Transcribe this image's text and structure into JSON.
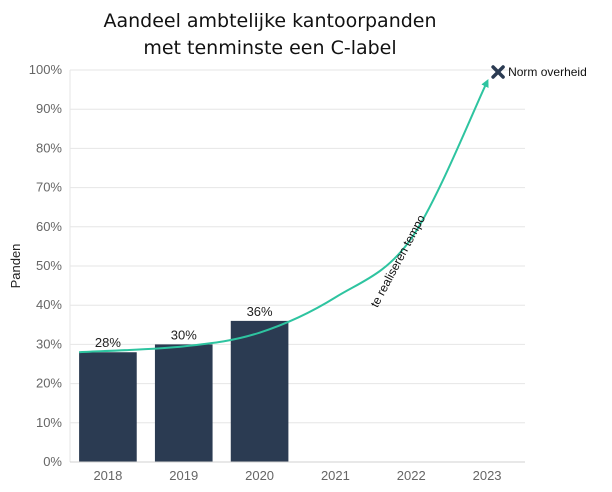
{
  "chart_data": {
    "type": "bar",
    "title_line1": "Aandeel ambtelijke kantoorpanden",
    "title_line2": "met tenminste een C-label",
    "ylabel": "Panden",
    "xlabel": "",
    "categories": [
      "2018",
      "2019",
      "2020",
      "2021",
      "2022",
      "2023"
    ],
    "values": [
      28,
      30,
      36,
      null,
      null,
      null
    ],
    "data_labels": [
      "28%",
      "30%",
      "36%",
      "",
      "",
      ""
    ],
    "yticks": [
      "0%",
      "10%",
      "20%",
      "30%",
      "40%",
      "50%",
      "60%",
      "70%",
      "80%",
      "90%",
      "100%"
    ],
    "ylim": [
      0,
      100
    ],
    "grid": true,
    "bar_color": "#2b3b52",
    "trend": {
      "label": "te realiseren tempo",
      "color": "#2ec4a0",
      "points": [
        {
          "x": "2018",
          "y": 28
        },
        {
          "x": "2019",
          "y": 29.5
        },
        {
          "x": "2020",
          "y": 33
        },
        {
          "x": "2021",
          "y": 42
        },
        {
          "x": "2022",
          "y": 57
        },
        {
          "x": "2023",
          "y": 97
        }
      ]
    },
    "target": {
      "label": "Norm overheid",
      "x": "2023",
      "y": 100,
      "color": "#2b3b52"
    }
  }
}
